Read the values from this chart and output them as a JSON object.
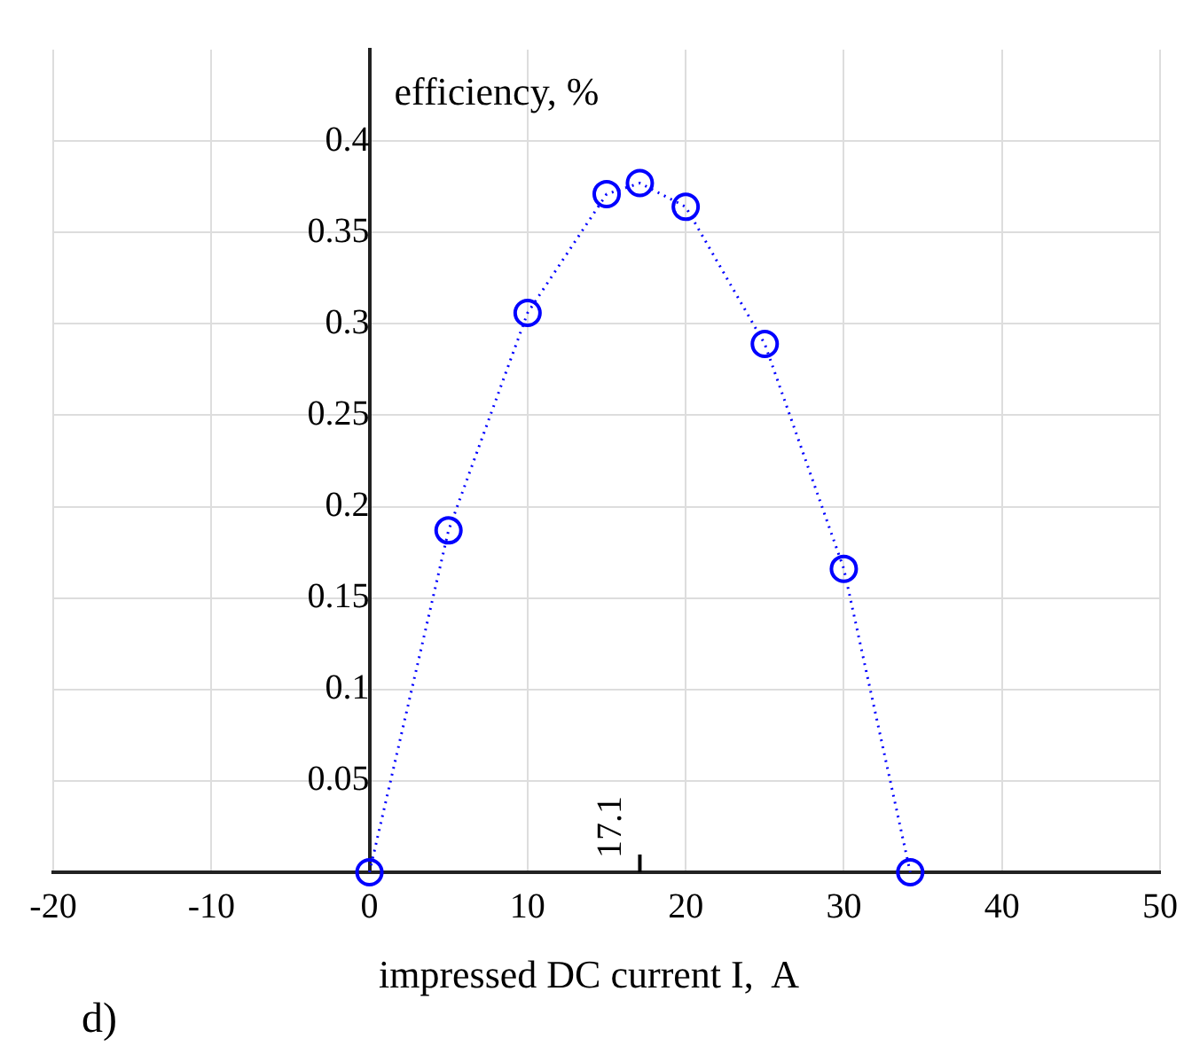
{
  "chart_data": {
    "type": "line",
    "xlabel": "impressed DC current I,  A",
    "ylabel": "efficiency, %",
    "x": [
      0,
      5,
      10,
      15,
      17.1,
      20,
      25,
      30,
      34.2
    ],
    "series": [
      {
        "color": "#0000ff",
        "values": [
          0,
          0.187,
          0.306,
          0.371,
          0.377,
          0.364,
          0.289,
          0.166,
          0
        ]
      }
    ],
    "xlim": [
      -20,
      50
    ],
    "xticks": [
      -20,
      -10,
      0,
      10,
      20,
      30,
      40,
      50
    ],
    "ylim": [
      0,
      0.45
    ],
    "yticks": [
      0.05,
      0.1,
      0.15,
      0.2,
      0.25,
      0.3,
      0.35,
      0.4
    ],
    "grid": true,
    "marker": "circle",
    "line_style": "dotted",
    "legend": false,
    "annotations": [
      "17.1",
      "d)"
    ]
  }
}
